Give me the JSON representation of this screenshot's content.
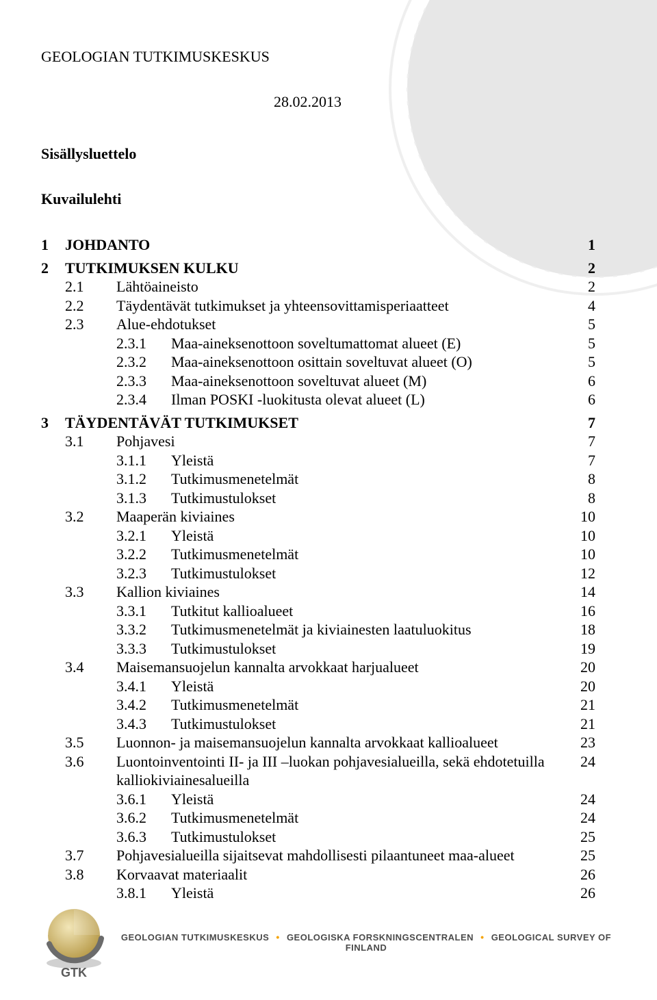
{
  "header": "GEOLOGIAN TUTKIMUSKESKUS",
  "date": "28.02.2013",
  "sections": {
    "sisallys": "Sisällysluettelo",
    "kuvailu": "Kuvailulehti"
  },
  "watermark": {
    "color": "#888888"
  },
  "toc": [
    {
      "lvl": 1,
      "bold": true,
      "num": "1",
      "title": "JOHDANTO",
      "page": "1"
    },
    {
      "lvl": 1,
      "bold": true,
      "num": "2",
      "title": "TUTKIMUKSEN KULKU",
      "page": "2"
    },
    {
      "lvl": 2,
      "bold": false,
      "num": "2.1",
      "title": "Lähtöaineisto",
      "page": "2"
    },
    {
      "lvl": 2,
      "bold": false,
      "num": "2.2",
      "title": "Täydentävät tutkimukset ja yhteensovittamisperiaatteet",
      "page": "4"
    },
    {
      "lvl": 2,
      "bold": false,
      "num": "2.3",
      "title": "Alue-ehdotukset",
      "page": "5"
    },
    {
      "lvl": 3,
      "bold": false,
      "num": "2.3.1",
      "title": "Maa-aineksenottoon soveltumattomat alueet (E)",
      "page": "5"
    },
    {
      "lvl": 3,
      "bold": false,
      "num": "2.3.2",
      "title": "Maa-aineksenottoon osittain soveltuvat alueet (O)",
      "page": "5"
    },
    {
      "lvl": 3,
      "bold": false,
      "num": "2.3.3",
      "title": "Maa-aineksenottoon soveltuvat alueet (M)",
      "page": "6"
    },
    {
      "lvl": 3,
      "bold": false,
      "num": "2.3.4",
      "title": "Ilman POSKI -luokitusta olevat alueet (L)",
      "page": "6"
    },
    {
      "lvl": 1,
      "bold": true,
      "num": "3",
      "title": "TÄYDENTÄVÄT TUTKIMUKSET",
      "page": "7"
    },
    {
      "lvl": 2,
      "bold": false,
      "num": "3.1",
      "title": "Pohjavesi",
      "page": "7"
    },
    {
      "lvl": 3,
      "bold": false,
      "num": "3.1.1",
      "title": "Yleistä",
      "page": "7"
    },
    {
      "lvl": 3,
      "bold": false,
      "num": "3.1.2",
      "title": "Tutkimusmenetelmät",
      "page": "8"
    },
    {
      "lvl": 3,
      "bold": false,
      "num": "3.1.3",
      "title": "Tutkimustulokset",
      "page": "8"
    },
    {
      "lvl": 2,
      "bold": false,
      "num": "3.2",
      "title": "Maaperän kiviaines",
      "page": "10"
    },
    {
      "lvl": 3,
      "bold": false,
      "num": "3.2.1",
      "title": "Yleistä",
      "page": "10"
    },
    {
      "lvl": 3,
      "bold": false,
      "num": "3.2.2",
      "title": "Tutkimusmenetelmät",
      "page": "10"
    },
    {
      "lvl": 3,
      "bold": false,
      "num": "3.2.3",
      "title": "Tutkimustulokset",
      "page": "12"
    },
    {
      "lvl": 2,
      "bold": false,
      "num": "3.3",
      "title": "Kallion kiviaines",
      "page": "14"
    },
    {
      "lvl": 3,
      "bold": false,
      "num": "3.3.1",
      "title": "Tutkitut kallioalueet",
      "page": "16"
    },
    {
      "lvl": 3,
      "bold": false,
      "num": "3.3.2",
      "title": "Tutkimusmenetelmät ja kiviainesten laatuluokitus",
      "page": "18"
    },
    {
      "lvl": 3,
      "bold": false,
      "num": "3.3.3",
      "title": "Tutkimustulokset",
      "page": "19"
    },
    {
      "lvl": 2,
      "bold": false,
      "num": "3.4",
      "title": "Maisemansuojelun kannalta arvokkaat harjualueet",
      "page": "20"
    },
    {
      "lvl": 3,
      "bold": false,
      "num": "3.4.1",
      "title": "Yleistä",
      "page": "20"
    },
    {
      "lvl": 3,
      "bold": false,
      "num": "3.4.2",
      "title": "Tutkimusmenetelmät",
      "page": "21"
    },
    {
      "lvl": 3,
      "bold": false,
      "num": "3.4.3",
      "title": "Tutkimustulokset",
      "page": "21"
    },
    {
      "lvl": 2,
      "bold": false,
      "num": "3.5",
      "title": "Luonnon- ja maisemansuojelun kannalta arvokkaat kallioalueet",
      "page": "23"
    },
    {
      "lvl": 2,
      "bold": false,
      "num": "3.6",
      "title": "Luontoinventointi II- ja III –luokan pohjavesialueilla, sekä ehdotetuilla kalliokiviainesalueilla",
      "page": "24"
    },
    {
      "lvl": 3,
      "bold": false,
      "num": "3.6.1",
      "title": "Yleistä",
      "page": "24"
    },
    {
      "lvl": 3,
      "bold": false,
      "num": "3.6.2",
      "title": "Tutkimusmenetelmät",
      "page": "24"
    },
    {
      "lvl": 3,
      "bold": false,
      "num": "3.6.3",
      "title": "Tutkimustulokset",
      "page": "25"
    },
    {
      "lvl": 2,
      "bold": false,
      "num": "3.7",
      "title": "Pohjavesialueilla sijaitsevat mahdollisesti pilaantuneet maa-alueet",
      "page": "25"
    },
    {
      "lvl": 2,
      "bold": false,
      "num": "3.8",
      "title": "Korvaavat materiaalit",
      "page": "26"
    },
    {
      "lvl": 3,
      "bold": false,
      "num": "3.8.1",
      "title": "Yleistä",
      "page": "26"
    }
  ],
  "footer": {
    "org1": "GEOLOGIAN TUTKIMUSKESKUS",
    "org2": "GEOLOGISKA FORSKNINGSCENTRALEN",
    "org3": "GEOLOGICAL SURVEY OF FINLAND",
    "logo_label": "GTK",
    "logo_colors": {
      "sphere_light": "#e8d9a0",
      "sphere_dark": "#b89b4a",
      "arc": "#6b6b6b",
      "shadow": "#9a9a9a",
      "text": "#5a5a5a"
    },
    "dot_color": "#f5a300",
    "text_color": "#5a5a5a"
  }
}
